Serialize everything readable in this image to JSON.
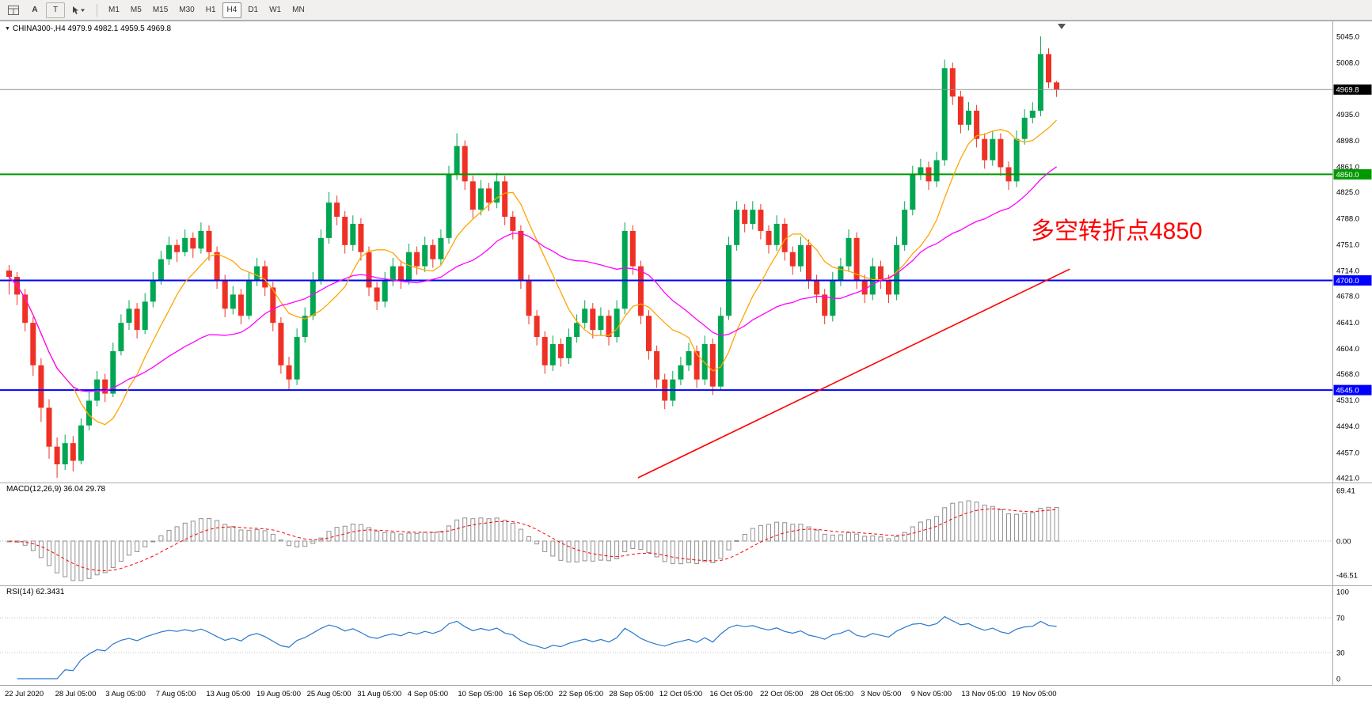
{
  "toolbar": {
    "pointer_label": "A",
    "text_tool_label": "T",
    "timeframes": [
      "M1",
      "M5",
      "M15",
      "M30",
      "H1",
      "H4",
      "D1",
      "W1",
      "MN"
    ],
    "active_timeframe": "H4"
  },
  "chart": {
    "title": "CHINA300-,H4",
    "quote_ohlc": "4979.9 4982.1 4959.5 4969.8",
    "annotation": {
      "text": "多空转折点4850",
      "color": "#FF0000"
    },
    "price_axis": {
      "ticks": [
        5045.0,
        5008.0,
        4935.0,
        4898.0,
        4861.0,
        4825.0,
        4788.0,
        4751.0,
        4714.0,
        4678.0,
        4641.0,
        4604.0,
        4568.0,
        4531.0,
        4494.0,
        4457.0,
        4421.0
      ],
      "badges": [
        {
          "label": "4969.8",
          "price": 4969.8,
          "color": "#000000"
        },
        {
          "label": "4850.0",
          "price": 4850.0,
          "color": "#009900"
        },
        {
          "label": "4700.0",
          "price": 4700.0,
          "color": "#0000FF"
        },
        {
          "label": "4545.0",
          "price": 4545.0,
          "color": "#0000FF"
        }
      ]
    },
    "hlines": [
      {
        "price": 4969.8,
        "color": "#909090",
        "width": 1
      },
      {
        "price": 4850.0,
        "color": "#009900",
        "width": 2
      },
      {
        "price": 4700.0,
        "color": "#0000FF",
        "width": 2
      },
      {
        "price": 4545.0,
        "color": "#0000FF",
        "width": 2
      }
    ],
    "trendline": {
      "color": "#FF0000",
      "from_bar": 79,
      "from_price": 4421,
      "to_bar": 133,
      "to_price": 4716
    },
    "ma": [
      {
        "name": "ma-fast",
        "period": 9,
        "color": "#FFA500"
      },
      {
        "name": "ma-slow",
        "period": 26,
        "color": "#FF00FF"
      }
    ],
    "indicators": {
      "macd": {
        "label": "MACD(12,26,9) 36.04 29.78",
        "fast": 12,
        "slow": 26,
        "signal": 9,
        "axis": [
          "69.41",
          "0.00",
          "-46.51"
        ],
        "histogram_color": "#8f8f8f",
        "signal_color": "#FF0000"
      },
      "rsi": {
        "label": "RSI(14) 62.3431",
        "period": 14,
        "levels": [
          70,
          30
        ],
        "axis": [
          "100",
          "70",
          "30",
          "0"
        ],
        "color": "#2878CE"
      }
    },
    "time_axis": [
      "22 Jul 2020",
      "28 Jul 05:00",
      "3 Aug 05:00",
      "7 Aug 05:00",
      "13 Aug 05:00",
      "19 Aug 05:00",
      "25 Aug 05:00",
      "31 Aug 05:00",
      "4 Sep 05:00",
      "10 Sep 05:00",
      "16 Sep 05:00",
      "22 Sep 05:00",
      "28 Sep 05:00",
      "12 Oct 05:00",
      "16 Oct 05:00",
      "22 Oct 05:00",
      "28 Oct 05:00",
      "3 Nov 05:00",
      "9 Nov 05:00",
      "13 Nov 05:00",
      "19 Nov 05:00"
    ]
  },
  "chart_data": {
    "type": "candlestick",
    "symbol": "CHINA300-",
    "timeframe": "H4",
    "y_range": [
      4421,
      5045
    ],
    "colors": {
      "up": "#00A651",
      "down": "#EE3124"
    },
    "ohlc": [
      [
        4714,
        4722,
        4680,
        4705
      ],
      [
        4705,
        4712,
        4665,
        4680
      ],
      [
        4680,
        4688,
        4628,
        4640
      ],
      [
        4640,
        4648,
        4565,
        4580
      ],
      [
        4580,
        4590,
        4500,
        4520
      ],
      [
        4520,
        4532,
        4448,
        4465
      ],
      [
        4465,
        4478,
        4421,
        4440
      ],
      [
        4440,
        4482,
        4432,
        4470
      ],
      [
        4470,
        4480,
        4430,
        4445
      ],
      [
        4445,
        4505,
        4440,
        4495
      ],
      [
        4495,
        4542,
        4488,
        4530
      ],
      [
        4530,
        4572,
        4522,
        4560
      ],
      [
        4560,
        4568,
        4528,
        4540
      ],
      [
        4540,
        4612,
        4535,
        4600
      ],
      [
        4600,
        4652,
        4594,
        4640
      ],
      [
        4640,
        4672,
        4630,
        4660
      ],
      [
        4660,
        4668,
        4618,
        4630
      ],
      [
        4630,
        4682,
        4624,
        4670
      ],
      [
        4670,
        4712,
        4662,
        4700
      ],
      [
        4700,
        4742,
        4694,
        4730
      ],
      [
        4730,
        4762,
        4722,
        4750
      ],
      [
        4750,
        4758,
        4726,
        4740
      ],
      [
        4740,
        4772,
        4734,
        4760
      ],
      [
        4760,
        4768,
        4732,
        4745
      ],
      [
        4745,
        4782,
        4738,
        4770
      ],
      [
        4770,
        4778,
        4728,
        4740
      ],
      [
        4740,
        4748,
        4688,
        4700
      ],
      [
        4700,
        4708,
        4648,
        4660
      ],
      [
        4660,
        4692,
        4652,
        4680
      ],
      [
        4680,
        4688,
        4638,
        4650
      ],
      [
        4650,
        4712,
        4645,
        4700
      ],
      [
        4700,
        4732,
        4692,
        4720
      ],
      [
        4720,
        4728,
        4678,
        4690
      ],
      [
        4690,
        4698,
        4628,
        4640
      ],
      [
        4640,
        4648,
        4568,
        4580
      ],
      [
        4580,
        4592,
        4545,
        4560
      ],
      [
        4560,
        4632,
        4552,
        4620
      ],
      [
        4620,
        4662,
        4612,
        4650
      ],
      [
        4650,
        4712,
        4644,
        4700
      ],
      [
        4700,
        4772,
        4694,
        4760
      ],
      [
        4760,
        4825,
        4752,
        4810
      ],
      [
        4810,
        4820,
        4778,
        4790
      ],
      [
        4790,
        4798,
        4738,
        4750
      ],
      [
        4750,
        4792,
        4742,
        4780
      ],
      [
        4780,
        4788,
        4728,
        4740
      ],
      [
        4740,
        4748,
        4678,
        4690
      ],
      [
        4690,
        4698,
        4658,
        4670
      ],
      [
        4670,
        4712,
        4662,
        4700
      ],
      [
        4700,
        4732,
        4692,
        4720
      ],
      [
        4720,
        4728,
        4688,
        4700
      ],
      [
        4700,
        4752,
        4694,
        4740
      ],
      [
        4740,
        4748,
        4708,
        4720
      ],
      [
        4720,
        4762,
        4712,
        4750
      ],
      [
        4750,
        4758,
        4718,
        4730
      ],
      [
        4730,
        4772,
        4722,
        4760
      ],
      [
        4760,
        4862,
        4752,
        4850
      ],
      [
        4850,
        4908,
        4842,
        4890
      ],
      [
        4890,
        4898,
        4828,
        4840
      ],
      [
        4840,
        4848,
        4788,
        4800
      ],
      [
        4800,
        4842,
        4792,
        4830
      ],
      [
        4830,
        4838,
        4798,
        4810
      ],
      [
        4810,
        4852,
        4802,
        4840
      ],
      [
        4840,
        4848,
        4778,
        4790
      ],
      [
        4790,
        4798,
        4758,
        4770
      ],
      [
        4770,
        4778,
        4688,
        4700
      ],
      [
        4700,
        4708,
        4638,
        4650
      ],
      [
        4650,
        4658,
        4608,
        4620
      ],
      [
        4620,
        4628,
        4568,
        4580
      ],
      [
        4580,
        4622,
        4572,
        4610
      ],
      [
        4610,
        4618,
        4578,
        4590
      ],
      [
        4590,
        4632,
        4582,
        4620
      ],
      [
        4620,
        4652,
        4612,
        4640
      ],
      [
        4640,
        4672,
        4632,
        4660
      ],
      [
        4660,
        4668,
        4618,
        4630
      ],
      [
        4630,
        4662,
        4622,
        4650
      ],
      [
        4650,
        4658,
        4608,
        4620
      ],
      [
        4620,
        4672,
        4612,
        4660
      ],
      [
        4660,
        4782,
        4652,
        4770
      ],
      [
        4770,
        4778,
        4708,
        4720
      ],
      [
        4720,
        4728,
        4638,
        4650
      ],
      [
        4650,
        4658,
        4588,
        4600
      ],
      [
        4600,
        4608,
        4548,
        4560
      ],
      [
        4560,
        4568,
        4518,
        4530
      ],
      [
        4530,
        4572,
        4522,
        4560
      ],
      [
        4560,
        4592,
        4552,
        4580
      ],
      [
        4580,
        4612,
        4572,
        4600
      ],
      [
        4600,
        4608,
        4548,
        4560
      ],
      [
        4560,
        4622,
        4552,
        4610
      ],
      [
        4610,
        4618,
        4538,
        4550
      ],
      [
        4550,
        4662,
        4545,
        4650
      ],
      [
        4650,
        4762,
        4644,
        4750
      ],
      [
        4750,
        4812,
        4742,
        4800
      ],
      [
        4800,
        4808,
        4768,
        4780
      ],
      [
        4780,
        4812,
        4772,
        4800
      ],
      [
        4800,
        4808,
        4758,
        4770
      ],
      [
        4770,
        4778,
        4738,
        4750
      ],
      [
        4750,
        4792,
        4742,
        4780
      ],
      [
        4780,
        4788,
        4728,
        4740
      ],
      [
        4740,
        4748,
        4708,
        4720
      ],
      [
        4720,
        4762,
        4712,
        4750
      ],
      [
        4750,
        4758,
        4688,
        4700
      ],
      [
        4700,
        4708,
        4668,
        4680
      ],
      [
        4680,
        4688,
        4638,
        4650
      ],
      [
        4650,
        4712,
        4642,
        4700
      ],
      [
        4700,
        4732,
        4692,
        4720
      ],
      [
        4720,
        4772,
        4712,
        4760
      ],
      [
        4760,
        4768,
        4688,
        4700
      ],
      [
        4700,
        4708,
        4668,
        4680
      ],
      [
        4680,
        4732,
        4672,
        4720
      ],
      [
        4720,
        4728,
        4688,
        4700
      ],
      [
        4700,
        4708,
        4668,
        4680
      ],
      [
        4680,
        4762,
        4672,
        4750
      ],
      [
        4750,
        4812,
        4742,
        4800
      ],
      [
        4800,
        4862,
        4792,
        4850
      ],
      [
        4850,
        4872,
        4842,
        4860
      ],
      [
        4860,
        4868,
        4828,
        4840
      ],
      [
        4840,
        4882,
        4832,
        4870
      ],
      [
        4870,
        5012,
        4862,
        5000
      ],
      [
        5000,
        5008,
        4948,
        4960
      ],
      [
        4960,
        4968,
        4908,
        4920
      ],
      [
        4920,
        4952,
        4912,
        4940
      ],
      [
        4940,
        4948,
        4888,
        4900
      ],
      [
        4900,
        4908,
        4858,
        4870
      ],
      [
        4870,
        4912,
        4862,
        4900
      ],
      [
        4900,
        4908,
        4848,
        4860
      ],
      [
        4860,
        4868,
        4828,
        4840
      ],
      [
        4840,
        4912,
        4832,
        4900
      ],
      [
        4900,
        4942,
        4892,
        4930
      ],
      [
        4930,
        4952,
        4922,
        4940
      ],
      [
        4940,
        5045,
        4932,
        5020
      ],
      [
        5020,
        5028,
        4972,
        4979.9
      ],
      [
        4979.9,
        4982.1,
        4959.5,
        4969.8
      ]
    ]
  }
}
